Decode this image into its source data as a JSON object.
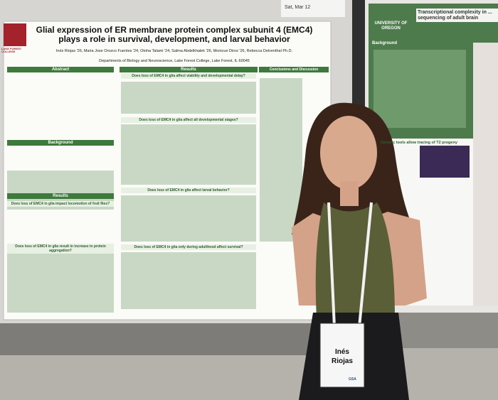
{
  "sign": {
    "text": "Sat, Mar 12"
  },
  "left_poster": {
    "logo": "LAKE FOREST COLLEGE",
    "title": "Glial expression of ER membrane protein complex subunit 4 (EMC4) plays a role in survival, development, and larval behavior",
    "authors": "Inés Riojas '26, Maria Jose Orozco Fuentes '24, Otoha Talami '24, Salma Abdelkhalek '26, Monicue Diros '26, Rebecca Delventhal Ph.D.",
    "affiliation": "Departments of Biology and Neuroscience, Lake Forest College, Lake Forest, IL 60045",
    "sections": [
      "Abstract",
      "Background",
      "Results",
      "Results",
      "Conclusions and Discussion"
    ],
    "panels": [
      "Does loss of EMC4 in glia affect viability and developmental delay?",
      "Does loss of EMC4 in glia affect all developmental stages?",
      "Does loss of EMC4 in glia affect larval behavior?",
      "Does loss of EMC4 in glia impact locomotion of fruit flies?",
      "Does loss of EMC4 in glia result in increase in protein aggregation?",
      "Does loss of EMC4 in glia only during adulthood affect survival?"
    ]
  },
  "right_poster": {
    "logo": "UNIVERSITY OF OREGON",
    "title": "Transcriptional complexity in ... sequencing of adult brain",
    "sections": [
      "Background",
      "Genetic tools allow tracing of T2 progeny"
    ]
  },
  "badge": {
    "first_name": "Inés",
    "last_name": "Riojas",
    "org": "GSA"
  }
}
